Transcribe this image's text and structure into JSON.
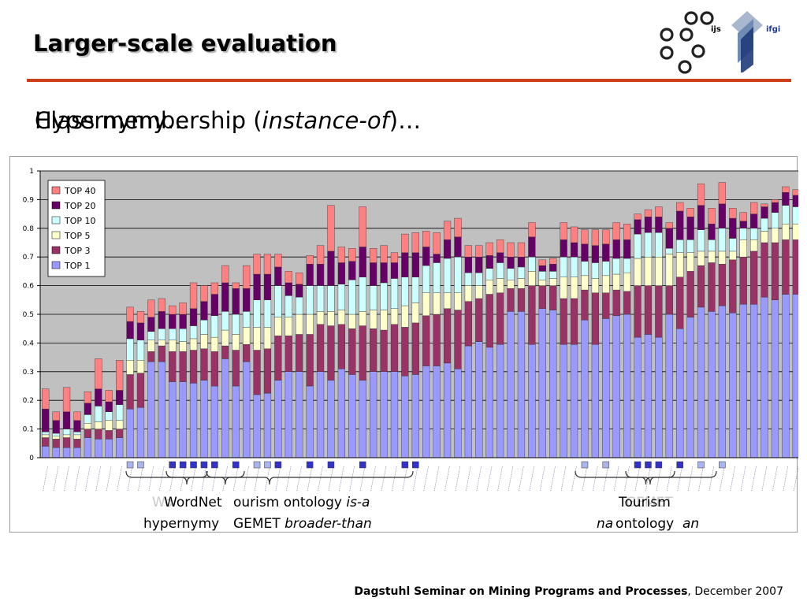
{
  "slide": {
    "title": "Larger-scale evaluation",
    "subtitle_back": "Class membership (",
    "subtitle_back_italic": "instance-of",
    "subtitle_back_end": ")…",
    "subtitle_front": "Hypernymy…",
    "logos": {
      "left": "ijs",
      "right": "ifgi"
    },
    "footer": {
      "bold": "Dagstuhl Seminar on Mining Programs and Processes",
      "rest": ", December 2007"
    },
    "groups": {
      "wordnet_hyp": {
        "line1": "WordNet",
        "line2": "hypernymy"
      },
      "ghost_wordnet": {
        "text": "Wo"
      },
      "tourism_isa": {
        "text": "ourism ontology ",
        "italic": "is-a"
      },
      "gemet": {
        "text": "GEMET ",
        "italic": "broader-than"
      },
      "tourism_right": {
        "text": "Tourism"
      },
      "ontology_right": {
        "text": "ontology"
      },
      "ghost_right_top": {
        "text": "GEMET"
      },
      "ghost_right_bottom_left": {
        "text": "na"
      },
      "ghost_right_bottom_right": {
        "text": "an"
      }
    }
  },
  "colors": {
    "top1": "#9999ff",
    "top3": "#993366",
    "top5": "#ffffcc",
    "top10": "#ccffff",
    "top20": "#660066",
    "top40": "#ff8080",
    "plot_bg": "#c0c0c0",
    "marker_dark": "#3333cc",
    "marker_light": "#aab4ee",
    "rule": "#cc3d1a"
  },
  "chart_data": {
    "type": "bar",
    "stacked": true,
    "ylim": [
      0,
      1
    ],
    "yticks": [
      "0",
      "0.1",
      "0.2",
      "0.3",
      "0.4",
      "0.5",
      "0.6",
      "0.7",
      "0.8",
      "0.9",
      "1"
    ],
    "grid": true,
    "legend": {
      "position": "top-left",
      "order": [
        "TOP 40",
        "TOP 20",
        "TOP 10",
        "TOP  5",
        "TOP  3",
        "TOP  1"
      ]
    },
    "cumulative": [
      [
        0.04,
        0.07,
        0.08,
        0.09,
        0.17,
        0.24
      ],
      [
        0.035,
        0.065,
        0.075,
        0.085,
        0.13,
        0.16
      ],
      [
        0.035,
        0.07,
        0.08,
        0.1,
        0.16,
        0.245
      ],
      [
        0.035,
        0.065,
        0.08,
        0.09,
        0.13,
        0.16
      ],
      [
        0.07,
        0.1,
        0.12,
        0.15,
        0.19,
        0.23
      ],
      [
        0.065,
        0.1,
        0.125,
        0.18,
        0.24,
        0.345
      ],
      [
        0.065,
        0.095,
        0.13,
        0.16,
        0.195,
        0.235
      ],
      [
        0.07,
        0.1,
        0.13,
        0.185,
        0.235,
        0.34
      ],
      [
        0.17,
        0.29,
        0.34,
        0.415,
        0.475,
        0.525
      ],
      [
        0.175,
        0.295,
        0.34,
        0.41,
        0.47,
        0.51
      ],
      [
        0.335,
        0.37,
        0.41,
        0.44,
        0.49,
        0.55
      ],
      [
        0.335,
        0.39,
        0.41,
        0.45,
        0.51,
        0.555
      ],
      [
        0.265,
        0.37,
        0.41,
        0.45,
        0.5,
        0.53
      ],
      [
        0.265,
        0.37,
        0.405,
        0.45,
        0.5,
        0.54
      ],
      [
        0.26,
        0.375,
        0.415,
        0.46,
        0.52,
        0.61
      ],
      [
        0.27,
        0.38,
        0.43,
        0.48,
        0.545,
        0.6
      ],
      [
        0.25,
        0.37,
        0.42,
        0.495,
        0.57,
        0.61
      ],
      [
        0.345,
        0.39,
        0.445,
        0.51,
        0.61,
        0.67
      ],
      [
        0.25,
        0.375,
        0.43,
        0.5,
        0.59,
        0.61
      ],
      [
        0.335,
        0.395,
        0.455,
        0.51,
        0.59,
        0.67
      ],
      [
        0.22,
        0.375,
        0.455,
        0.55,
        0.64,
        0.71
      ],
      [
        0.225,
        0.38,
        0.455,
        0.55,
        0.64,
        0.71
      ],
      [
        0.27,
        0.425,
        0.49,
        0.6,
        0.665,
        0.71
      ],
      [
        0.3,
        0.425,
        0.49,
        0.565,
        0.61,
        0.65
      ],
      [
        0.3,
        0.43,
        0.5,
        0.56,
        0.605,
        0.645
      ],
      [
        0.25,
        0.43,
        0.5,
        0.6,
        0.675,
        0.705
      ],
      [
        0.3,
        0.465,
        0.51,
        0.6,
        0.675,
        0.74
      ],
      [
        0.27,
        0.46,
        0.51,
        0.6,
        0.72,
        0.88
      ],
      [
        0.31,
        0.465,
        0.515,
        0.605,
        0.68,
        0.735
      ],
      [
        0.29,
        0.45,
        0.5,
        0.62,
        0.685,
        0.73
      ],
      [
        0.27,
        0.46,
        0.51,
        0.63,
        0.735,
        0.875
      ],
      [
        0.3,
        0.45,
        0.515,
        0.6,
        0.68,
        0.73
      ],
      [
        0.3,
        0.445,
        0.515,
        0.61,
        0.68,
        0.74
      ],
      [
        0.3,
        0.465,
        0.52,
        0.625,
        0.68,
        0.715
      ],
      [
        0.285,
        0.455,
        0.53,
        0.63,
        0.715,
        0.78
      ],
      [
        0.29,
        0.47,
        0.54,
        0.63,
        0.715,
        0.785
      ],
      [
        0.32,
        0.495,
        0.575,
        0.67,
        0.735,
        0.79
      ],
      [
        0.32,
        0.5,
        0.575,
        0.68,
        0.71,
        0.785
      ],
      [
        0.33,
        0.52,
        0.575,
        0.695,
        0.76,
        0.825
      ],
      [
        0.31,
        0.515,
        0.575,
        0.7,
        0.77,
        0.835
      ],
      [
        0.39,
        0.545,
        0.6,
        0.645,
        0.7,
        0.74
      ],
      [
        0.405,
        0.555,
        0.6,
        0.645,
        0.7,
        0.74
      ],
      [
        0.385,
        0.57,
        0.62,
        0.66,
        0.705,
        0.75
      ],
      [
        0.395,
        0.575,
        0.625,
        0.68,
        0.715,
        0.76
      ],
      [
        0.51,
        0.59,
        0.62,
        0.66,
        0.7,
        0.75
      ],
      [
        0.51,
        0.59,
        0.625,
        0.665,
        0.7,
        0.75
      ],
      [
        0.395,
        0.6,
        0.65,
        0.7,
        0.77,
        0.82
      ],
      [
        0.52,
        0.6,
        0.62,
        0.65,
        0.67,
        0.69
      ],
      [
        0.515,
        0.6,
        0.625,
        0.65,
        0.675,
        0.695
      ],
      [
        0.395,
        0.555,
        0.63,
        0.7,
        0.76,
        0.82
      ],
      [
        0.395,
        0.555,
        0.63,
        0.7,
        0.75,
        0.805
      ],
      [
        0.48,
        0.585,
        0.635,
        0.685,
        0.745,
        0.795
      ],
      [
        0.395,
        0.575,
        0.625,
        0.68,
        0.74,
        0.795
      ],
      [
        0.485,
        0.575,
        0.635,
        0.685,
        0.745,
        0.795
      ],
      [
        0.495,
        0.585,
        0.64,
        0.695,
        0.76,
        0.82
      ],
      [
        0.5,
        0.58,
        0.645,
        0.695,
        0.76,
        0.815
      ],
      [
        0.42,
        0.6,
        0.695,
        0.78,
        0.83,
        0.85
      ],
      [
        0.43,
        0.6,
        0.7,
        0.785,
        0.84,
        0.865
      ],
      [
        0.42,
        0.6,
        0.7,
        0.785,
        0.84,
        0.875
      ],
      [
        0.5,
        0.6,
        0.71,
        0.73,
        0.8,
        0.82
      ],
      [
        0.45,
        0.63,
        0.715,
        0.76,
        0.86,
        0.89
      ],
      [
        0.49,
        0.65,
        0.715,
        0.76,
        0.84,
        0.87
      ],
      [
        0.525,
        0.67,
        0.72,
        0.795,
        0.88,
        0.955
      ],
      [
        0.51,
        0.68,
        0.72,
        0.76,
        0.815,
        0.87
      ],
      [
        0.53,
        0.675,
        0.72,
        0.8,
        0.885,
        0.96
      ],
      [
        0.505,
        0.69,
        0.72,
        0.765,
        0.835,
        0.87
      ],
      [
        0.535,
        0.7,
        0.76,
        0.8,
        0.825,
        0.855
      ],
      [
        0.535,
        0.72,
        0.76,
        0.8,
        0.85,
        0.89
      ],
      [
        0.56,
        0.75,
        0.79,
        0.835,
        0.875,
        0.885
      ],
      [
        0.55,
        0.75,
        0.8,
        0.855,
        0.89,
        0.9
      ],
      [
        0.57,
        0.76,
        0.815,
        0.88,
        0.925,
        0.945
      ],
      [
        0.57,
        0.76,
        0.815,
        0.875,
        0.915,
        0.935
      ]
    ],
    "category_markers": [
      {
        "index": 8,
        "tone": "light"
      },
      {
        "index": 9,
        "tone": "light"
      },
      {
        "index": 12,
        "tone": "dark"
      },
      {
        "index": 13,
        "tone": "dark"
      },
      {
        "index": 14,
        "tone": "dark"
      },
      {
        "index": 15,
        "tone": "dark"
      },
      {
        "index": 16,
        "tone": "dark"
      },
      {
        "index": 18,
        "tone": "dark"
      },
      {
        "index": 20,
        "tone": "light"
      },
      {
        "index": 21,
        "tone": "light"
      },
      {
        "index": 22,
        "tone": "dark"
      },
      {
        "index": 25,
        "tone": "dark"
      },
      {
        "index": 27,
        "tone": "dark"
      },
      {
        "index": 30,
        "tone": "dark"
      },
      {
        "index": 34,
        "tone": "dark"
      },
      {
        "index": 35,
        "tone": "dark"
      },
      {
        "index": 51,
        "tone": "light"
      },
      {
        "index": 53,
        "tone": "light"
      },
      {
        "index": 56,
        "tone": "dark"
      },
      {
        "index": 57,
        "tone": "dark"
      },
      {
        "index": 58,
        "tone": "dark"
      },
      {
        "index": 60,
        "tone": "dark"
      },
      {
        "index": 62,
        "tone": "light"
      },
      {
        "index": 64,
        "tone": "light"
      }
    ]
  }
}
